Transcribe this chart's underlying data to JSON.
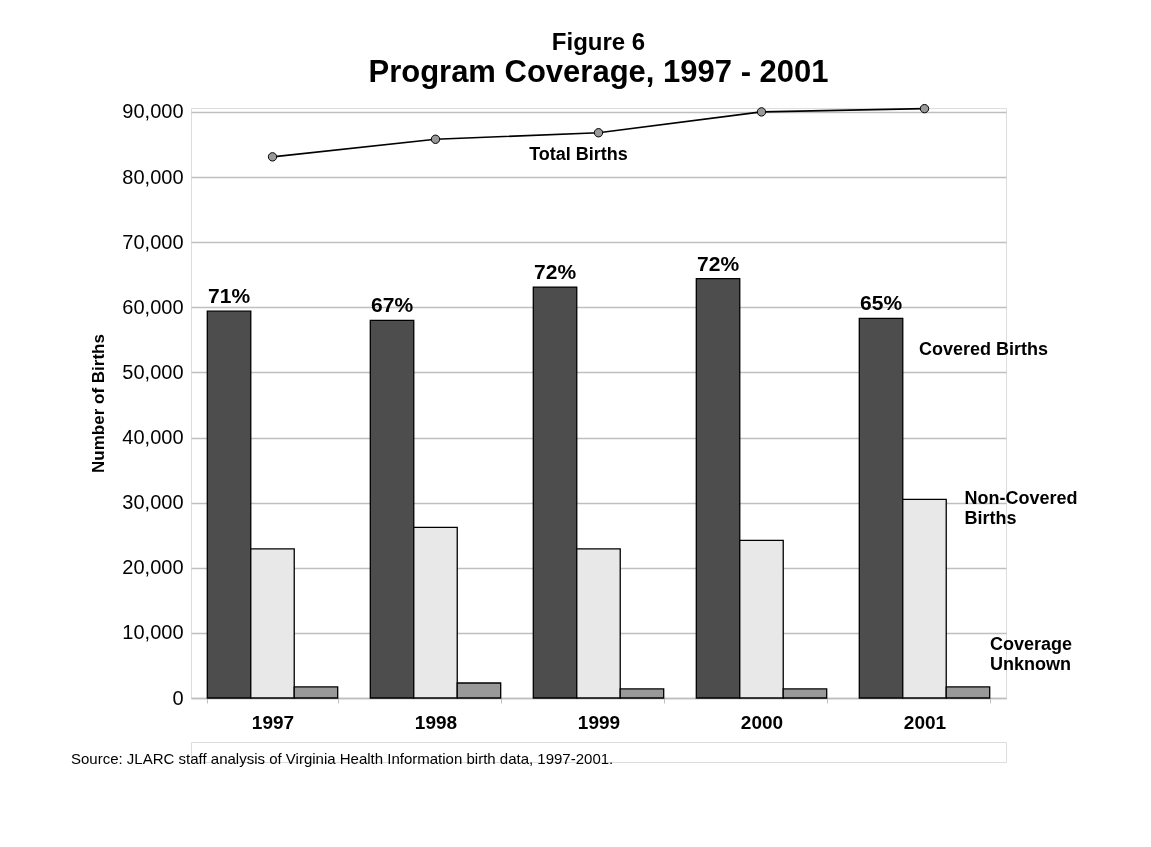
{
  "chart_data": {
    "type": "bar",
    "title": "Figure 6",
    "subtitle": "Program Coverage, 1997 - 2001",
    "ylabel": "Number of Births",
    "categories": [
      "1997",
      "1998",
      "1999",
      "2000",
      "2001"
    ],
    "series": [
      {
        "name": "Covered Births",
        "color": "#4d4d4d",
        "values": [
          59400,
          58000,
          63100,
          64400,
          58300
        ]
      },
      {
        "name": "Non-Covered Births",
        "color": "#e8e8e8",
        "values": [
          22900,
          26200,
          22900,
          24200,
          30500
        ]
      },
      {
        "name": "Coverage Unknown",
        "color": "#999999",
        "values": [
          1700,
          2300,
          1400,
          1400,
          1700
        ]
      },
      {
        "name": "Total Births",
        "type": "line",
        "color": "#000000",
        "marker": "circle",
        "values": [
          83100,
          85800,
          86800,
          90000,
          90500
        ]
      }
    ],
    "ylim": [
      0,
      90600
    ],
    "yticks": [
      {
        "value": 0,
        "label": "0"
      },
      {
        "value": 10000,
        "label": "10,000"
      },
      {
        "value": 20000,
        "label": "20,000"
      },
      {
        "value": 30000,
        "label": "30,000"
      },
      {
        "value": 40000,
        "label": "40,000"
      },
      {
        "value": 50000,
        "label": "50,000"
      },
      {
        "value": 60000,
        "label": "60,000"
      },
      {
        "value": 70000,
        "label": "70,000"
      },
      {
        "value": 80000,
        "label": "80,000"
      },
      {
        "value": 90000,
        "label": "90,000"
      }
    ],
    "grid": "y",
    "annotations": [
      "71%",
      "67%",
      "72%",
      "72%",
      "65%",
      "Source: JLARC staff analysis of Virginia Health Information birth data, 1997-2001."
    ]
  }
}
